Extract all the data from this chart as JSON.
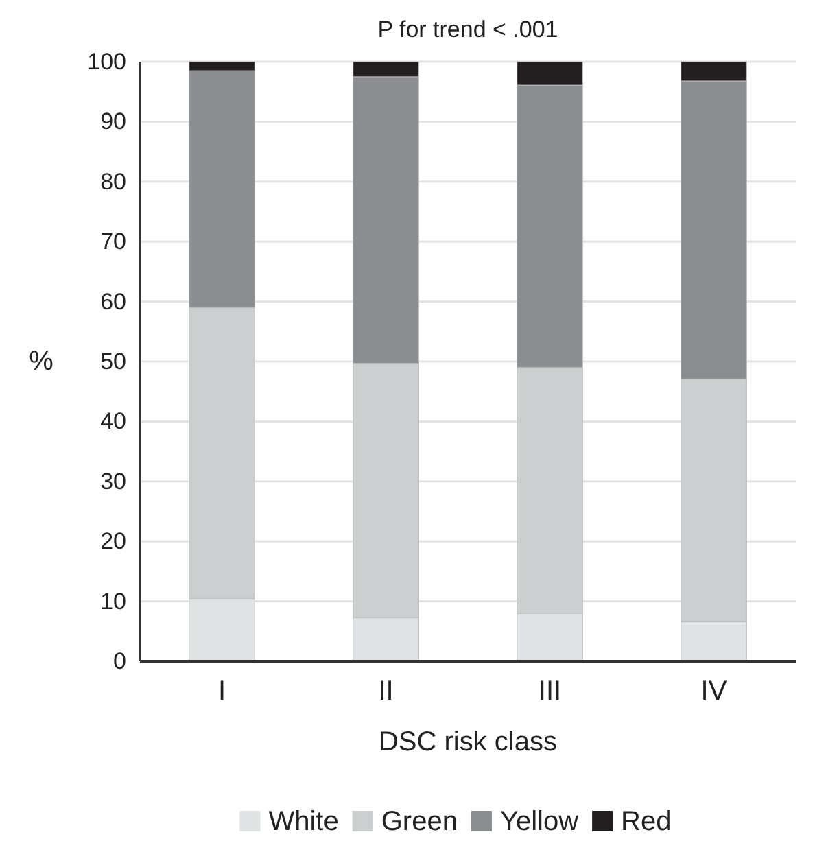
{
  "chart_data": {
    "type": "bar",
    "stacked": true,
    "title": "P for trend < .001",
    "xlabel": "DSC risk class",
    "ylabel": "%",
    "categories": [
      "I",
      "II",
      "III",
      "IV"
    ],
    "series": [
      {
        "name": "White",
        "color": "#e1e2e4",
        "values": [
          10.5,
          7.3,
          8.0,
          6.6
        ]
      },
      {
        "name": "Green",
        "color": "#cdced0",
        "values": [
          48.5,
          42.4,
          41.0,
          40.5
        ]
      },
      {
        "name": "Yellow",
        "color": "#8c8d91",
        "values": [
          39.5,
          47.8,
          47.1,
          49.7
        ]
      },
      {
        "name": "Red",
        "color": "#231f20",
        "values": [
          1.5,
          2.5,
          3.9,
          3.2
        ]
      }
    ],
    "ylim": [
      0,
      100
    ],
    "yticks": [
      0,
      10,
      20,
      30,
      40,
      50,
      60,
      70,
      80,
      90,
      100
    ],
    "grid": "y",
    "legend": "bottom"
  }
}
